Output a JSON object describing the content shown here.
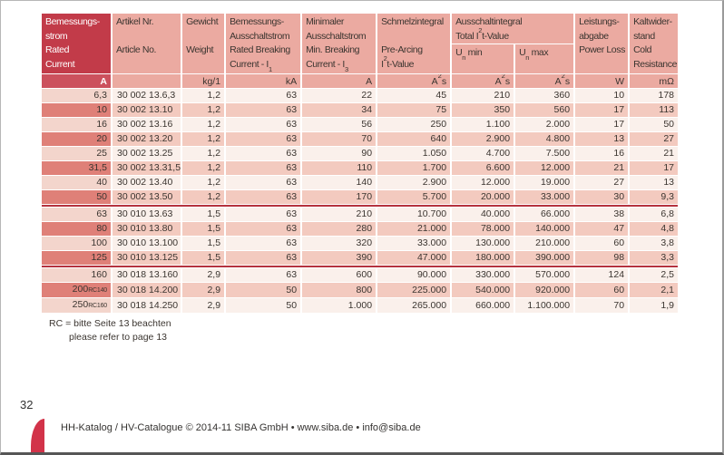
{
  "page_number": "32",
  "footer": {
    "text": "HH-Katalog / HV-Catalogue © 2014-11 SIBA GmbH • www.siba.de • info@siba.de"
  },
  "note": {
    "line1": "RC = bitte Seite 13 beachten",
    "line2": "please refer to page 13"
  },
  "colors": {
    "header_red": "#c23b49",
    "unit_red": "#cc515d",
    "header_pink": "#ebaaa1",
    "row_light": "#faf0eb",
    "row_light_first": "#f3d5cc",
    "row_dark": "#f3cabf",
    "row_dark_first": "#df8078",
    "group_separator": "#b5323e",
    "accent": "#d23349"
  },
  "table": {
    "header": {
      "columns": [
        {
          "red": true,
          "lines": [
            "Bemessungs-",
            "strom",
            "Rated",
            "Current"
          ]
        },
        {
          "lines": [
            "Artikel Nr.",
            "",
            "Article No.",
            ""
          ]
        },
        {
          "lines": [
            "Gewicht",
            "",
            "Weight",
            ""
          ]
        },
        {
          "lines": [
            "Bemessungs-",
            "Ausschaltstrom",
            "Rated Breaking",
            "Current - I~1~"
          ]
        },
        {
          "lines": [
            "Minimaler",
            "Ausschaltstrom",
            "Min. Breaking",
            "Current - I~3~"
          ]
        },
        {
          "lines": [
            "Schmelzintegral",
            "",
            "Pre-Arcing",
            "I^2^t-Value"
          ]
        },
        {
          "group": true,
          "lines": [
            "Ausschaltintegral",
            "Total I^2^t-Value"
          ],
          "sub": [
            "U~n~ min",
            "U~n~ max"
          ]
        },
        {
          "lines": [
            "Leistungs-",
            "abgabe",
            "Power Loss",
            ""
          ]
        },
        {
          "lines": [
            "Kaltwider-",
            "stand",
            "Cold",
            "Resistance"
          ]
        }
      ],
      "units": [
        "A",
        "",
        "kg/1",
        "kA",
        "A",
        "A^2^s",
        "A^2^s",
        "A^2^s",
        "W",
        "mΩ"
      ]
    },
    "rows": [
      {
        "v": [
          "6,3",
          "30 002 13.6,3",
          "1,2",
          "63",
          "22",
          "45",
          "210",
          "360",
          "10",
          "178"
        ]
      },
      {
        "v": [
          "10",
          "30 002 13.10",
          "1,2",
          "63",
          "34",
          "75",
          "350",
          "560",
          "17",
          "113"
        ]
      },
      {
        "v": [
          "16",
          "30 002 13.16",
          "1,2",
          "63",
          "56",
          "250",
          "1.100",
          "2.000",
          "17",
          "50"
        ]
      },
      {
        "v": [
          "20",
          "30 002 13.20",
          "1,2",
          "63",
          "70",
          "640",
          "2.900",
          "4.800",
          "13",
          "27"
        ]
      },
      {
        "v": [
          "25",
          "30 002 13.25",
          "1,2",
          "63",
          "90",
          "1.050",
          "4.700",
          "7.500",
          "16",
          "21"
        ]
      },
      {
        "v": [
          "31,5",
          "30 002 13.31,5",
          "1,2",
          "63",
          "110",
          "1.700",
          "6.600",
          "12.000",
          "21",
          "17"
        ]
      },
      {
        "v": [
          "40",
          "30 002 13.40",
          "1,2",
          "63",
          "140",
          "2.900",
          "12.000",
          "19.000",
          "27",
          "13"
        ]
      },
      {
        "v": [
          "50",
          "30 002 13.50",
          "1,2",
          "63",
          "170",
          "5.700",
          "20.000",
          "33.000",
          "30",
          "9,3"
        ],
        "group_end": true
      },
      {
        "v": [
          "63",
          "30 010 13.63",
          "1,5",
          "63",
          "210",
          "10.700",
          "40.000",
          "66.000",
          "38",
          "6,8"
        ]
      },
      {
        "v": [
          "80",
          "30 010 13.80",
          "1,5",
          "63",
          "280",
          "21.000",
          "78.000",
          "140.000",
          "47",
          "4,8"
        ]
      },
      {
        "v": [
          "100",
          "30 010 13.100",
          "1,5",
          "63",
          "320",
          "33.000",
          "130.000",
          "210.000",
          "60",
          "3,8"
        ]
      },
      {
        "v": [
          "125",
          "30 010 13.125",
          "1,5",
          "63",
          "390",
          "47.000",
          "180.000",
          "390.000",
          "98",
          "3,3"
        ],
        "group_end": true
      },
      {
        "v": [
          "160",
          "30 018 13.160",
          "2,9",
          "63",
          "600",
          "90.000",
          "330.000",
          "570.000",
          "124",
          "2,5"
        ]
      },
      {
        "v": [
          "200",
          "30 018 14.200",
          "2,9",
          "50",
          "800",
          "225.000",
          "540.000",
          "920.000",
          "60",
          "2,1"
        ],
        "suffix": "RC140"
      },
      {
        "v": [
          "250",
          "30 018 14.250",
          "2,9",
          "50",
          "1.000",
          "265.000",
          "660.000",
          "1.100.000",
          "70",
          "1,9"
        ],
        "suffix": "RC160"
      }
    ]
  }
}
